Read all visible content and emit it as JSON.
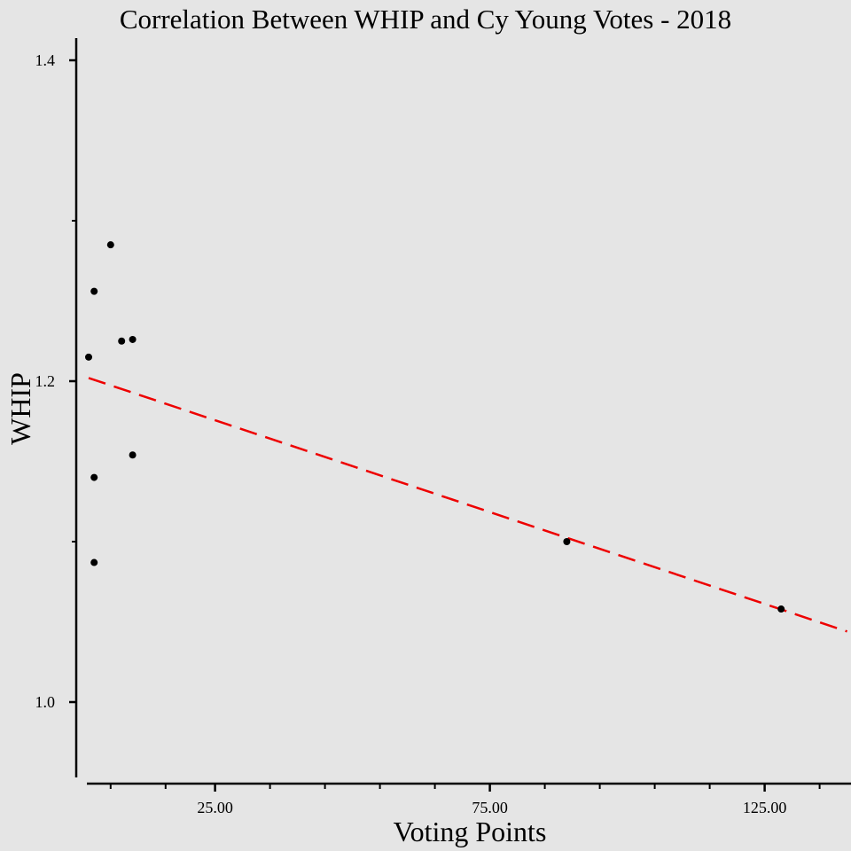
{
  "chart_data": {
    "type": "scatter",
    "title": "Correlation Between WHIP and Cy Young Votes - 2018",
    "xlabel": "Voting Points",
    "ylabel": "WHIP",
    "xlim": [
      2,
      140
    ],
    "ylim": [
      0.954,
      1.414
    ],
    "x_ticks": [
      25,
      75,
      125
    ],
    "x_tick_labels": [
      "25.00",
      "75.00",
      "125.00"
    ],
    "x_minor_ticks": [
      6,
      16,
      35,
      45,
      55,
      65,
      85,
      95,
      105,
      115,
      135
    ],
    "y_ticks": [
      1.0,
      1.2,
      1.4
    ],
    "y_tick_labels": [
      "1.0",
      "1.2",
      "1.4"
    ],
    "y_minor_ticks": [
      1.1,
      1.3
    ],
    "points": [
      {
        "x": 2,
        "y": 1.215
      },
      {
        "x": 3,
        "y": 1.256
      },
      {
        "x": 3,
        "y": 1.14
      },
      {
        "x": 3,
        "y": 1.087
      },
      {
        "x": 6,
        "y": 1.285
      },
      {
        "x": 8,
        "y": 1.225
      },
      {
        "x": 10,
        "y": 1.226
      },
      {
        "x": 10,
        "y": 1.154
      },
      {
        "x": 89,
        "y": 1.1
      },
      {
        "x": 128,
        "y": 1.058
      }
    ],
    "trendline": {
      "style": "dashed",
      "color": "#ee0000",
      "from": {
        "x": 2,
        "y": 1.202
      },
      "to": {
        "x": 140,
        "y": 1.044
      }
    },
    "grid": false,
    "legend": "none",
    "colors": {
      "background": "#e5e5e5",
      "points": "#000000",
      "axes": "#000000"
    }
  }
}
